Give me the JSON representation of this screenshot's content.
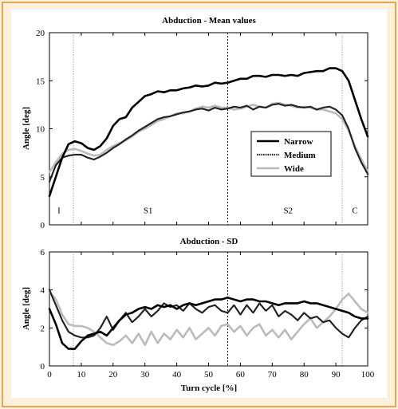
{
  "colors": {
    "page_bg": "#fdf0dd",
    "frame": "#e9a64d",
    "narrow": "#000000",
    "medium": "#222222",
    "wide": "#bbbbbb",
    "phase_line": "#aaaaaa"
  },
  "chart_data": [
    {
      "type": "line",
      "title": "Abduction - Mean values",
      "xlabel": "",
      "ylabel": "Angle [deg]",
      "xlim": [
        0,
        100
      ],
      "ylim": [
        0,
        20
      ],
      "yticks": [
        0,
        5,
        10,
        15,
        20
      ],
      "grid": false,
      "legend_position": "right-middle",
      "vlines": [
        {
          "x": 7.5,
          "style": "dotted",
          "color": "light"
        },
        {
          "x": 56,
          "style": "dotted",
          "color": "dark"
        },
        {
          "x": 92,
          "style": "dotted",
          "color": "light"
        }
      ],
      "phase_labels": [
        {
          "text": "I",
          "x": 3,
          "y": 1.2
        },
        {
          "text": "S1",
          "x": 31,
          "y": 1.2
        },
        {
          "text": "S2",
          "x": 75,
          "y": 1.2
        },
        {
          "text": "C",
          "x": 96,
          "y": 1.2
        }
      ],
      "x": [
        0,
        2,
        4,
        6,
        8,
        10,
        12,
        14,
        16,
        18,
        20,
        22,
        24,
        26,
        28,
        30,
        32,
        34,
        36,
        38,
        40,
        42,
        44,
        46,
        48,
        50,
        52,
        54,
        56,
        58,
        60,
        62,
        64,
        66,
        68,
        70,
        72,
        74,
        76,
        78,
        80,
        82,
        84,
        86,
        88,
        90,
        92,
        94,
        96,
        98,
        100
      ],
      "series": [
        {
          "name": "Narrow",
          "style": "solid",
          "values": [
            3.0,
            5.0,
            7.0,
            8.4,
            8.7,
            8.5,
            8.0,
            7.8,
            8.2,
            9.0,
            10.3,
            11.0,
            11.2,
            12.2,
            12.8,
            13.4,
            13.6,
            13.9,
            13.8,
            14.0,
            14.0,
            14.2,
            14.3,
            14.5,
            14.4,
            14.5,
            14.8,
            14.7,
            14.8,
            15.0,
            15.2,
            15.2,
            15.5,
            15.5,
            15.4,
            15.6,
            15.6,
            15.5,
            15.6,
            15.5,
            15.8,
            15.9,
            16.0,
            16.0,
            16.3,
            16.3,
            16.0,
            15.0,
            13.0,
            11.0,
            9.2
          ]
        },
        {
          "name": "Medium",
          "style": "dotted",
          "values": [
            4.5,
            6.2,
            7.0,
            7.2,
            7.3,
            7.3,
            7.0,
            6.8,
            7.1,
            7.5,
            8.0,
            8.4,
            8.9,
            9.3,
            9.8,
            10.2,
            10.6,
            11.0,
            11.2,
            11.3,
            11.5,
            11.7,
            11.8,
            12.0,
            12.1,
            11.9,
            12.2,
            12.0,
            12.1,
            12.3,
            12.2,
            12.4,
            12.0,
            12.3,
            12.2,
            12.5,
            12.6,
            12.4,
            12.5,
            12.3,
            12.2,
            12.3,
            12.0,
            12.2,
            12.3,
            12.0,
            11.4,
            10.0,
            8.0,
            6.5,
            5.3
          ]
        },
        {
          "name": "Wide",
          "style": "solid",
          "values": [
            5.5,
            6.5,
            7.4,
            7.8,
            7.9,
            7.7,
            7.4,
            7.2,
            7.3,
            7.8,
            8.2,
            8.5,
            8.8,
            9.2,
            9.7,
            10.0,
            10.4,
            10.8,
            11.0,
            11.3,
            11.6,
            11.6,
            11.8,
            12.1,
            12.3,
            12.2,
            12.4,
            12.2,
            12.2,
            12.0,
            12.1,
            12.3,
            12.5,
            12.3,
            12.2,
            12.6,
            12.7,
            12.5,
            12.4,
            12.2,
            12.3,
            12.2,
            12.0,
            12.0,
            11.8,
            11.6,
            11.0,
            9.8,
            8.2,
            6.8,
            5.6
          ]
        }
      ]
    },
    {
      "type": "line",
      "title": "Abduction - SD",
      "xlabel": "Turn cycle [%]",
      "ylabel": "Angle [deg]",
      "xlim": [
        0,
        100
      ],
      "ylim": [
        0,
        6
      ],
      "xticks": [
        0,
        10,
        20,
        30,
        40,
        50,
        60,
        70,
        80,
        90,
        100
      ],
      "yticks": [
        0,
        2,
        4,
        6
      ],
      "grid": false,
      "vlines": [
        {
          "x": 7.5,
          "style": "dotted",
          "color": "light"
        },
        {
          "x": 56,
          "style": "dotted",
          "color": "dark"
        },
        {
          "x": 92,
          "style": "dotted",
          "color": "light"
        }
      ],
      "x": [
        0,
        2,
        4,
        6,
        8,
        10,
        12,
        14,
        16,
        18,
        20,
        22,
        24,
        26,
        28,
        30,
        32,
        34,
        36,
        38,
        40,
        42,
        44,
        46,
        48,
        50,
        52,
        54,
        56,
        58,
        60,
        62,
        64,
        66,
        68,
        70,
        72,
        74,
        76,
        78,
        80,
        82,
        84,
        86,
        88,
        90,
        92,
        94,
        96,
        98,
        100
      ],
      "series": [
        {
          "name": "Narrow",
          "style": "solid",
          "values": [
            3.0,
            2.2,
            1.2,
            0.9,
            0.9,
            1.3,
            1.6,
            1.7,
            1.8,
            1.6,
            2.0,
            2.4,
            2.7,
            2.8,
            3.0,
            3.1,
            3.0,
            3.2,
            3.1,
            3.2,
            3.0,
            3.2,
            3.3,
            3.2,
            3.3,
            3.4,
            3.5,
            3.5,
            3.6,
            3.5,
            3.4,
            3.5,
            3.5,
            3.4,
            3.4,
            3.3,
            3.2,
            3.3,
            3.3,
            3.3,
            3.4,
            3.3,
            3.3,
            3.2,
            3.1,
            3.0,
            2.9,
            2.8,
            2.6,
            2.5,
            2.5
          ]
        },
        {
          "name": "Medium",
          "style": "dotted",
          "values": [
            4.0,
            3.2,
            2.4,
            1.8,
            1.6,
            1.5,
            1.5,
            1.6,
            2.0,
            2.6,
            1.9,
            2.4,
            2.8,
            2.3,
            2.6,
            3.0,
            2.6,
            2.9,
            3.3,
            3.1,
            3.2,
            2.9,
            3.3,
            3.0,
            2.8,
            3.1,
            3.2,
            2.9,
            2.8,
            3.2,
            2.7,
            3.2,
            2.8,
            3.3,
            2.9,
            3.2,
            2.6,
            2.9,
            2.7,
            2.4,
            2.8,
            2.5,
            2.6,
            2.3,
            2.4,
            2.0,
            1.7,
            1.5,
            2.0,
            2.4,
            2.6
          ]
        },
        {
          "name": "Wide",
          "style": "solid",
          "values": [
            3.9,
            3.5,
            2.7,
            2.2,
            2.1,
            2.1,
            2.0,
            1.8,
            1.5,
            1.2,
            1.1,
            1.3,
            1.6,
            1.2,
            1.7,
            1.1,
            1.8,
            1.2,
            1.7,
            1.4,
            1.9,
            1.5,
            2.0,
            1.4,
            1.7,
            2.0,
            1.6,
            2.1,
            2.2,
            1.8,
            2.1,
            1.6,
            2.0,
            2.2,
            1.6,
            1.9,
            1.5,
            1.9,
            1.4,
            1.8,
            2.2,
            2.5,
            2.0,
            2.3,
            2.6,
            3.0,
            3.5,
            3.8,
            3.4,
            3.0,
            2.8
          ]
        }
      ]
    }
  ]
}
